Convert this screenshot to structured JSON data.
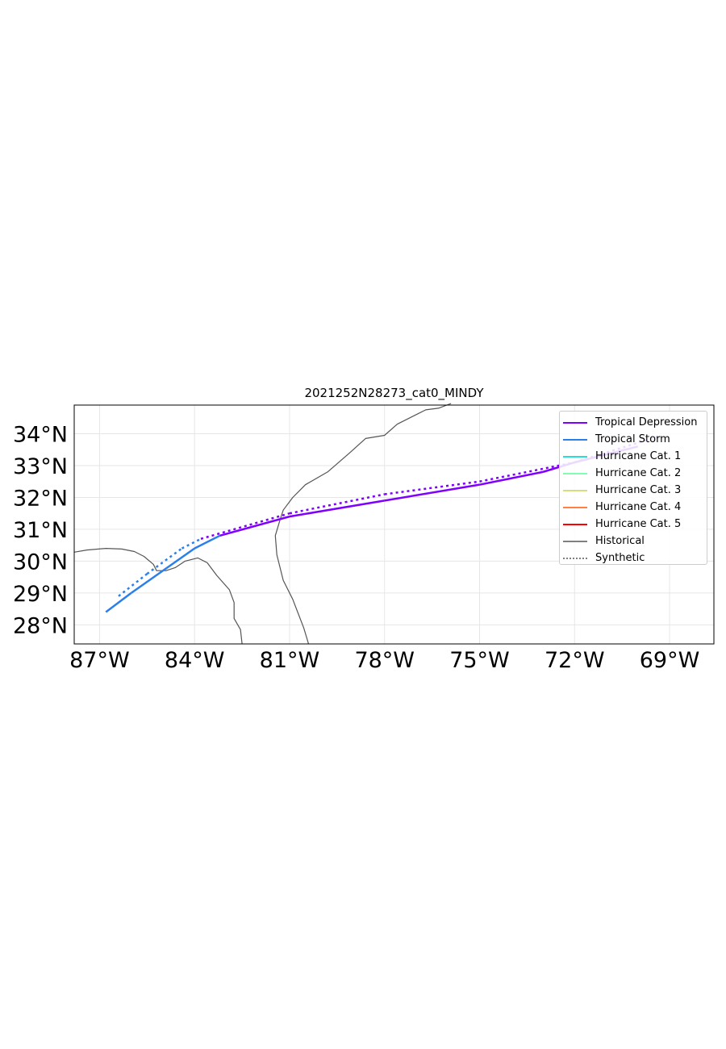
{
  "title": "2021252N28273_cat0_MINDY",
  "axes": {
    "x_ticks": [
      "87°W",
      "84°W",
      "81°W",
      "78°W",
      "75°W",
      "72°W",
      "69°W"
    ],
    "y_ticks": [
      "28°N",
      "29°N",
      "30°N",
      "31°N",
      "32°N",
      "33°N",
      "34°N"
    ]
  },
  "legend": [
    {
      "label": "Tropical Depression",
      "color": "#7f00ff",
      "style": "solid"
    },
    {
      "label": "Tropical Storm",
      "color": "#2a7fea",
      "style": "solid"
    },
    {
      "label": "Hurricane Cat. 1",
      "color": "#2adddd",
      "style": "solid"
    },
    {
      "label": "Hurricane Cat. 2",
      "color": "#80ffb3",
      "style": "solid"
    },
    {
      "label": "Hurricane Cat. 3",
      "color": "#d4dd80",
      "style": "solid"
    },
    {
      "label": "Hurricane Cat. 4",
      "color": "#ff8040",
      "style": "solid"
    },
    {
      "label": "Hurricane Cat. 5",
      "color": "#ff0000",
      "style": "solid"
    },
    {
      "label": "Historical",
      "color": "#808080",
      "style": "solid"
    },
    {
      "label": "Synthetic",
      "color": "#808080",
      "style": "dotted"
    }
  ],
  "chart_data": {
    "type": "map",
    "title": "2021252N28273_cat0_MINDY",
    "xlim": [
      -87.8,
      -67.6
    ],
    "ylim": [
      27.4,
      34.9
    ],
    "tracks": [
      {
        "name": "Historical",
        "points": [
          {
            "lon": -86.8,
            "lat": 28.4,
            "cat": "Tropical Storm"
          },
          {
            "lon": -86.0,
            "lat": 29.0,
            "cat": "Tropical Storm"
          },
          {
            "lon": -85.0,
            "lat": 29.7,
            "cat": "Tropical Storm"
          },
          {
            "lon": -84.0,
            "lat": 30.4,
            "cat": "Tropical Storm"
          },
          {
            "lon": -83.2,
            "lat": 30.8,
            "cat": "Tropical Depression"
          },
          {
            "lon": -81.0,
            "lat": 31.4,
            "cat": "Tropical Depression"
          },
          {
            "lon": -78.0,
            "lat": 31.9,
            "cat": "Tropical Depression"
          },
          {
            "lon": -75.0,
            "lat": 32.4,
            "cat": "Tropical Depression"
          },
          {
            "lon": -73.0,
            "lat": 32.8,
            "cat": "Tropical Depression"
          },
          {
            "lon": -72.0,
            "lat": 33.1,
            "cat": "Tropical Depression"
          },
          {
            "lon": -70.0,
            "lat": 33.6,
            "cat": "Tropical Depression"
          }
        ]
      },
      {
        "name": "Synthetic",
        "points": [
          {
            "lon": -86.4,
            "lat": 28.9,
            "cat": "Tropical Storm"
          },
          {
            "lon": -85.5,
            "lat": 29.6,
            "cat": "Tropical Storm"
          },
          {
            "lon": -84.4,
            "lat": 30.4,
            "cat": "Tropical Storm"
          },
          {
            "lon": -83.8,
            "lat": 30.7,
            "cat": "Tropical Depression"
          },
          {
            "lon": -81.0,
            "lat": 31.5,
            "cat": "Tropical Depression"
          },
          {
            "lon": -78.0,
            "lat": 32.1,
            "cat": "Tropical Depression"
          },
          {
            "lon": -75.0,
            "lat": 32.5,
            "cat": "Tropical Depression"
          },
          {
            "lon": -72.0,
            "lat": 33.1,
            "cat": "Tropical Depression"
          },
          {
            "lon": -69.4,
            "lat": 33.9,
            "cat": "Tropical Depression"
          }
        ]
      }
    ],
    "coastline": [
      [
        [
          -87.8,
          30.28
        ],
        [
          -87.4,
          30.35
        ],
        [
          -86.8,
          30.4
        ],
        [
          -86.3,
          30.38
        ],
        [
          -85.9,
          30.3
        ],
        [
          -85.6,
          30.15
        ],
        [
          -85.3,
          29.9
        ],
        [
          -85.2,
          29.7
        ],
        [
          -84.9,
          29.7
        ],
        [
          -84.6,
          29.8
        ],
        [
          -84.3,
          30.0
        ],
        [
          -83.9,
          30.1
        ],
        [
          -83.6,
          29.95
        ],
        [
          -83.3,
          29.55
        ],
        [
          -82.9,
          29.1
        ],
        [
          -82.75,
          28.7
        ],
        [
          -82.75,
          28.2
        ],
        [
          -82.55,
          27.85
        ],
        [
          -82.5,
          27.4
        ]
      ],
      [
        [
          -80.4,
          27.4
        ],
        [
          -80.55,
          27.9
        ],
        [
          -80.9,
          28.8
        ],
        [
          -81.2,
          29.4
        ],
        [
          -81.4,
          30.2
        ],
        [
          -81.45,
          30.8
        ],
        [
          -81.3,
          31.3
        ],
        [
          -81.2,
          31.6
        ],
        [
          -80.9,
          32.0
        ],
        [
          -80.5,
          32.4
        ],
        [
          -79.8,
          32.8
        ],
        [
          -79.1,
          33.4
        ],
        [
          -78.6,
          33.85
        ],
        [
          -78.0,
          33.95
        ],
        [
          -77.6,
          34.3
        ],
        [
          -77.0,
          34.6
        ],
        [
          -76.7,
          34.75
        ],
        [
          -76.3,
          34.8
        ],
        [
          -75.9,
          34.95
        ]
      ]
    ]
  }
}
